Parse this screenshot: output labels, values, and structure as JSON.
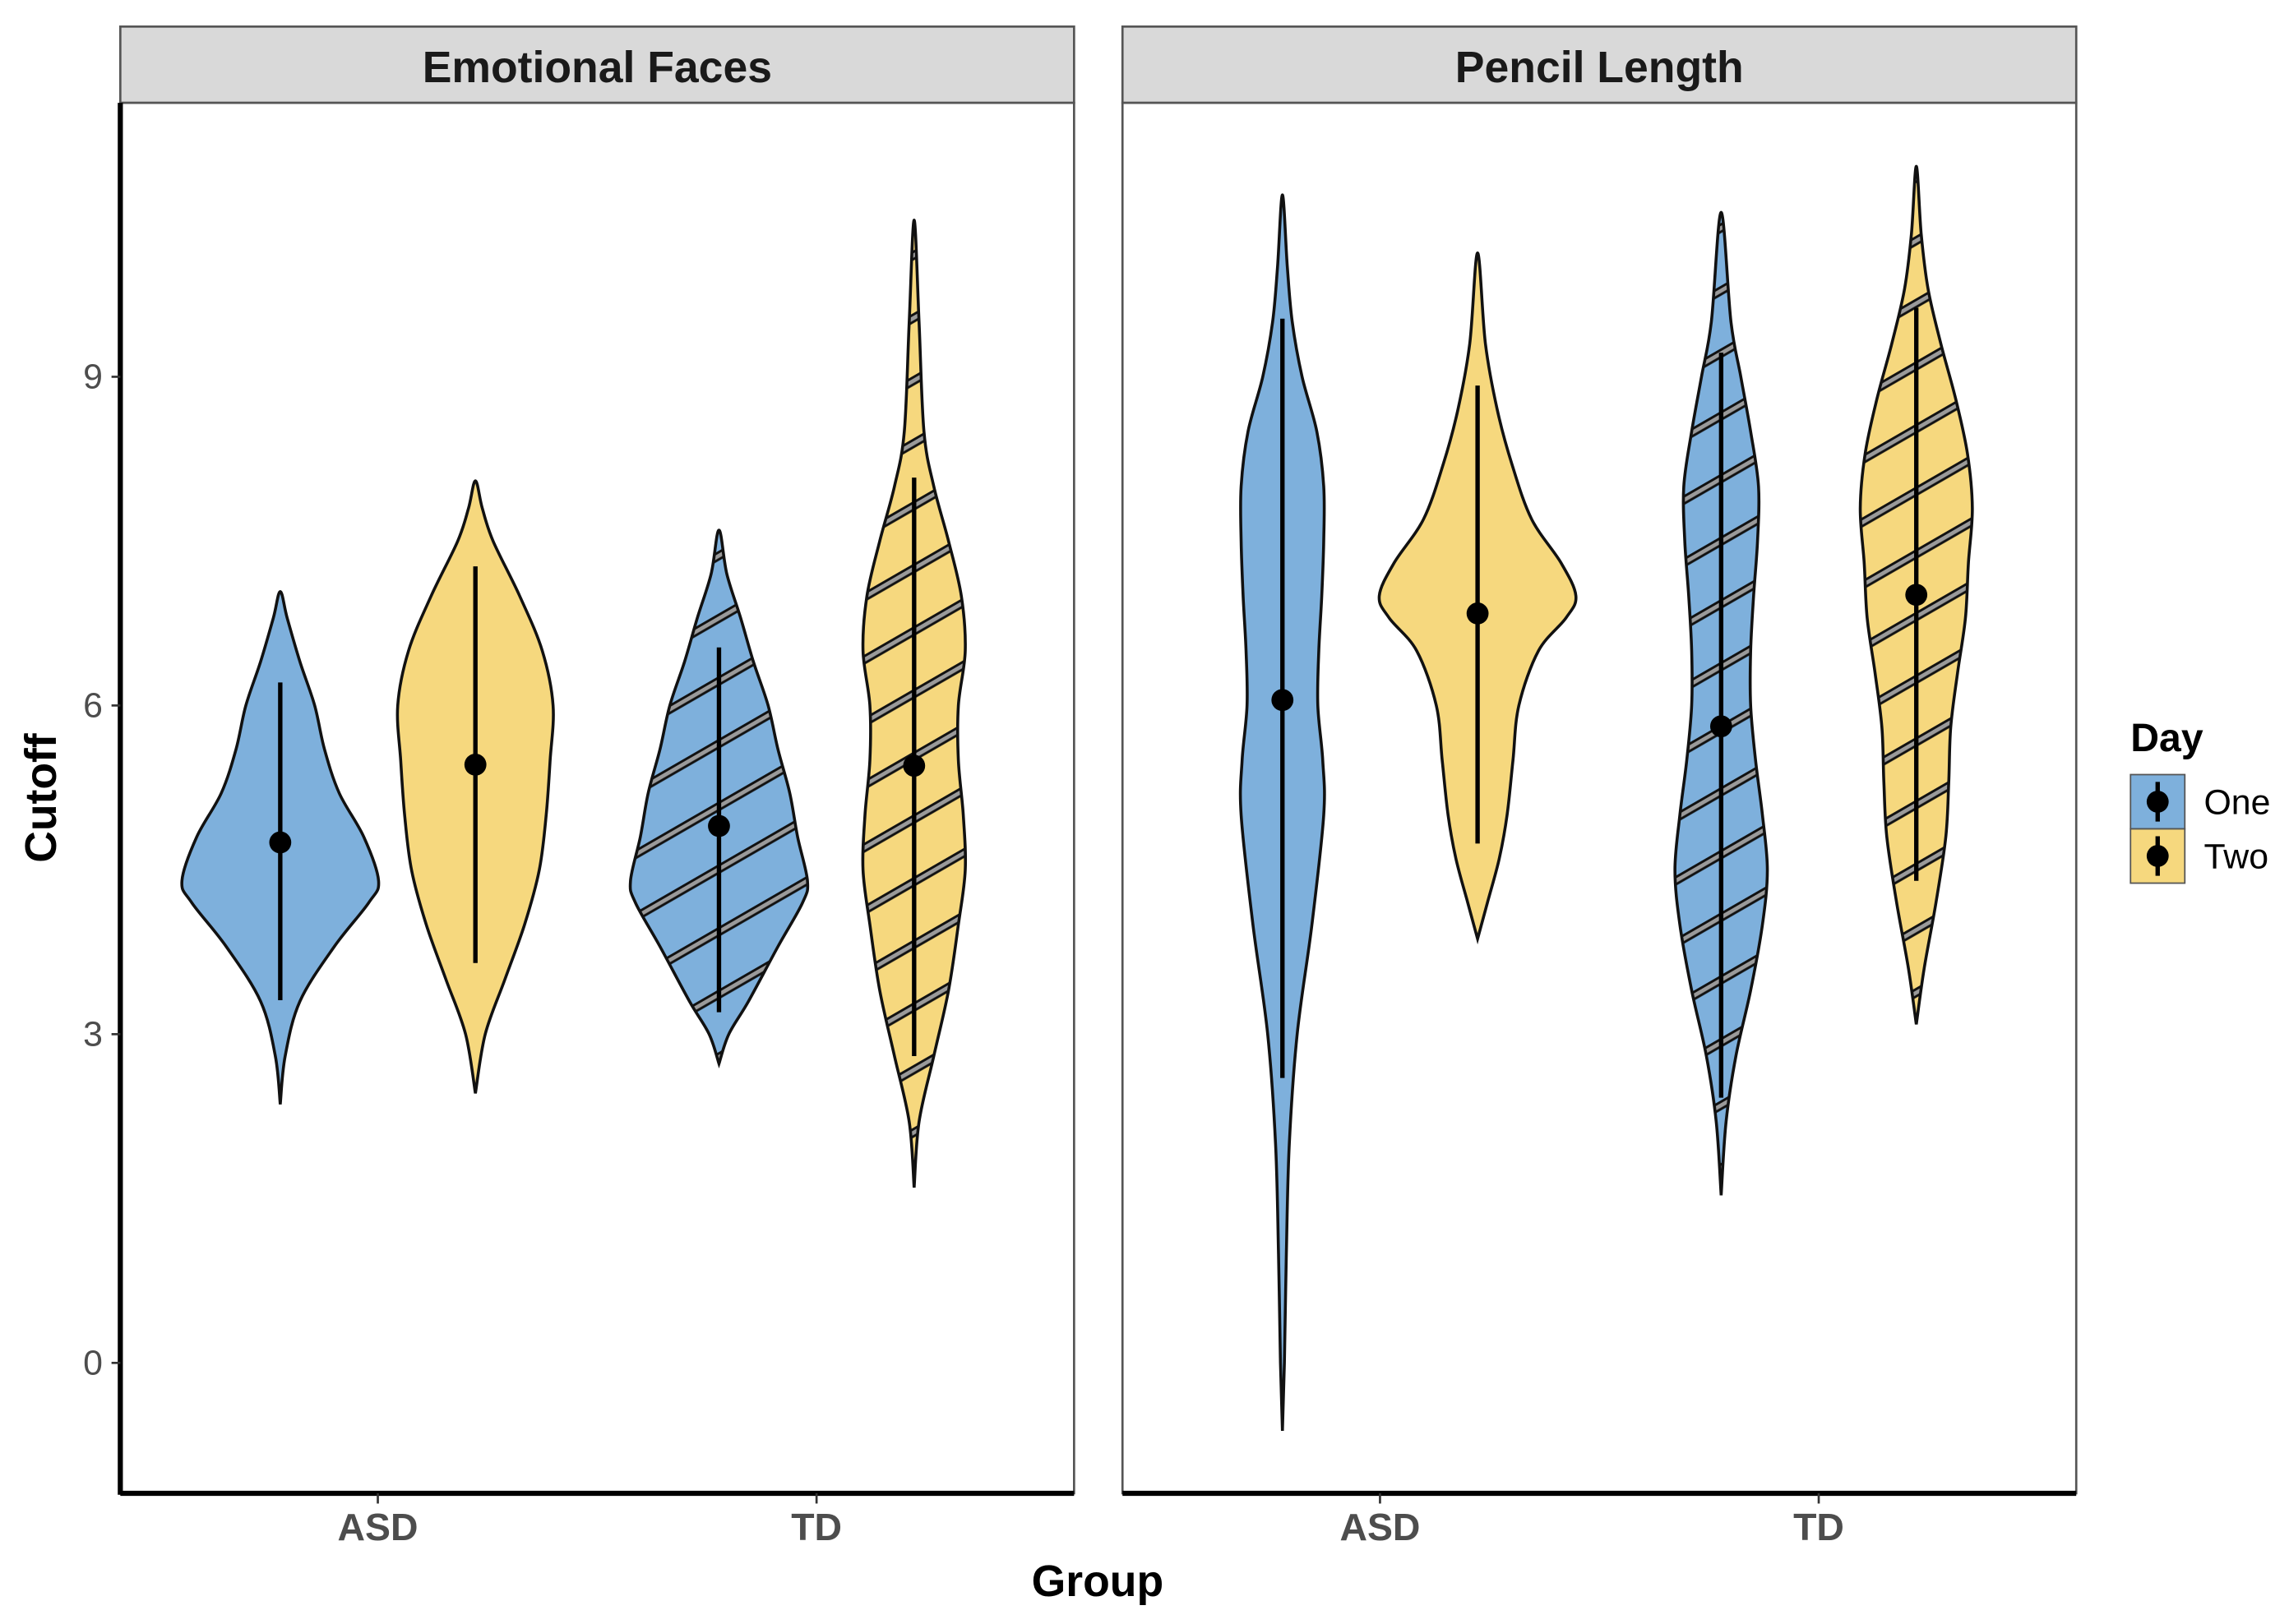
{
  "chart_data": {
    "type": "violin",
    "xlabel": "Group",
    "ylabel": "Cutoff",
    "ylim": [
      -1.19,
      11.5
    ],
    "yticks": [
      0,
      3,
      6,
      9
    ],
    "grid": false,
    "legend": {
      "title": "Day",
      "placement": "right",
      "entries": [
        {
          "label": "One",
          "color": "#7EB0DC"
        },
        {
          "label": "Two",
          "color": "#F6D87E"
        }
      ]
    },
    "colors": {
      "One": "#7EB0DC",
      "Two": "#F6D87E",
      "hatch": "#8c8c8c",
      "strip": "#d9d9d9"
    },
    "hatched_groups": [
      "TD"
    ],
    "panels": [
      {
        "title": "Emotional Faces",
        "categories": [
          "ASD",
          "TD"
        ],
        "violins": [
          {
            "group": "ASD",
            "day": "One",
            "mean": 4.75,
            "range": [
              3.31,
              6.21
            ],
            "density": [
              [
                2.36,
                0
              ],
              [
                2.8,
                0.05
              ],
              [
                3.3,
                0.2
              ],
              [
                3.8,
                0.55
              ],
              [
                4.2,
                0.9
              ],
              [
                4.4,
                1.0
              ],
              [
                4.8,
                0.85
              ],
              [
                5.2,
                0.6
              ],
              [
                5.6,
                0.45
              ],
              [
                6.0,
                0.35
              ],
              [
                6.4,
                0.2
              ],
              [
                6.8,
                0.07
              ],
              [
                7.04,
                0
              ]
            ]
          },
          {
            "group": "ASD",
            "day": "Two",
            "mean": 5.46,
            "range": [
              3.65,
              7.27
            ],
            "density": [
              [
                2.46,
                0
              ],
              [
                3.0,
                0.1
              ],
              [
                3.5,
                0.3
              ],
              [
                4.0,
                0.5
              ],
              [
                4.5,
                0.65
              ],
              [
                5.0,
                0.72
              ],
              [
                5.5,
                0.76
              ],
              [
                6.0,
                0.79
              ],
              [
                6.5,
                0.68
              ],
              [
                7.0,
                0.45
              ],
              [
                7.5,
                0.18
              ],
              [
                7.8,
                0.07
              ],
              [
                8.05,
                0
              ]
            ]
          },
          {
            "group": "TD",
            "day": "One",
            "mean": 4.9,
            "range": [
              3.2,
              6.53
            ],
            "density": [
              [
                2.73,
                0
              ],
              [
                3.0,
                0.1
              ],
              [
                3.3,
                0.3
              ],
              [
                3.8,
                0.6
              ],
              [
                4.2,
                0.85
              ],
              [
                4.4,
                0.9
              ],
              [
                4.8,
                0.8
              ],
              [
                5.2,
                0.72
              ],
              [
                5.6,
                0.6
              ],
              [
                6.0,
                0.5
              ],
              [
                6.4,
                0.35
              ],
              [
                6.8,
                0.22
              ],
              [
                7.2,
                0.08
              ],
              [
                7.6,
                0
              ]
            ]
          },
          {
            "group": "TD",
            "day": "Two",
            "mean": 5.45,
            "range": [
              2.8,
              8.08
            ],
            "density": [
              [
                1.6,
                0
              ],
              [
                2.2,
                0.05
              ],
              [
                2.8,
                0.2
              ],
              [
                3.4,
                0.35
              ],
              [
                4.0,
                0.45
              ],
              [
                4.5,
                0.52
              ],
              [
                5.0,
                0.5
              ],
              [
                5.5,
                0.45
              ],
              [
                6.0,
                0.45
              ],
              [
                6.5,
                0.52
              ],
              [
                7.0,
                0.48
              ],
              [
                7.5,
                0.35
              ],
              [
                8.0,
                0.2
              ],
              [
                8.5,
                0.1
              ],
              [
                9.5,
                0.05
              ],
              [
                10.43,
                0
              ]
            ]
          }
        ]
      },
      {
        "title": "Pencil Length",
        "categories": [
          "ASD",
          "TD"
        ],
        "violins": [
          {
            "group": "ASD",
            "day": "One",
            "mean": 6.05,
            "range": [
              2.6,
              9.53
            ],
            "density": [
              [
                -0.62,
                0
              ],
              [
                0,
                0.02
              ],
              [
                1,
                0.04
              ],
              [
                2,
                0.07
              ],
              [
                3,
                0.15
              ],
              [
                4,
                0.3
              ],
              [
                5,
                0.42
              ],
              [
                5.5,
                0.41
              ],
              [
                6,
                0.36
              ],
              [
                6.5,
                0.37
              ],
              [
                7,
                0.4
              ],
              [
                7.5,
                0.42
              ],
              [
                8,
                0.42
              ],
              [
                8.5,
                0.35
              ],
              [
                9,
                0.2
              ],
              [
                9.5,
                0.1
              ],
              [
                10,
                0.05
              ],
              [
                10.66,
                0
              ]
            ]
          },
          {
            "group": "ASD",
            "day": "Two",
            "mean": 6.84,
            "range": [
              4.74,
              8.92
            ],
            "density": [
              [
                3.87,
                0
              ],
              [
                4.2,
                0.1
              ],
              [
                4.6,
                0.22
              ],
              [
                5.0,
                0.3
              ],
              [
                5.5,
                0.36
              ],
              [
                6.0,
                0.42
              ],
              [
                6.5,
                0.62
              ],
              [
                6.8,
                0.9
              ],
              [
                7.0,
                1.0
              ],
              [
                7.3,
                0.85
              ],
              [
                7.7,
                0.55
              ],
              [
                8.2,
                0.35
              ],
              [
                8.7,
                0.2
              ],
              [
                9.3,
                0.08
              ],
              [
                10.13,
                0
              ]
            ]
          },
          {
            "group": "TD",
            "day": "One",
            "mean": 5.81,
            "range": [
              2.42,
              9.22
            ],
            "density": [
              [
                1.53,
                0
              ],
              [
                2.2,
                0.05
              ],
              [
                2.8,
                0.15
              ],
              [
                3.4,
                0.3
              ],
              [
                4.0,
                0.42
              ],
              [
                4.5,
                0.47
              ],
              [
                5.0,
                0.42
              ],
              [
                5.5,
                0.35
              ],
              [
                6.0,
                0.3
              ],
              [
                6.5,
                0.3
              ],
              [
                7.0,
                0.33
              ],
              [
                7.5,
                0.37
              ],
              [
                8.0,
                0.38
              ],
              [
                8.5,
                0.3
              ],
              [
                9.0,
                0.2
              ],
              [
                9.5,
                0.1
              ],
              [
                10.5,
                0
              ]
            ]
          },
          {
            "group": "TD",
            "day": "Two",
            "mean": 7.01,
            "range": [
              4.4,
              9.63
            ],
            "density": [
              [
                3.09,
                0
              ],
              [
                3.6,
                0.08
              ],
              [
                4.2,
                0.2
              ],
              [
                4.8,
                0.3
              ],
              [
                5.3,
                0.33
              ],
              [
                5.8,
                0.35
              ],
              [
                6.3,
                0.42
              ],
              [
                6.8,
                0.5
              ],
              [
                7.3,
                0.53
              ],
              [
                7.8,
                0.57
              ],
              [
                8.3,
                0.52
              ],
              [
                8.8,
                0.4
              ],
              [
                9.3,
                0.25
              ],
              [
                9.8,
                0.12
              ],
              [
                10.3,
                0.05
              ],
              [
                10.92,
                0
              ]
            ]
          }
        ]
      }
    ]
  }
}
